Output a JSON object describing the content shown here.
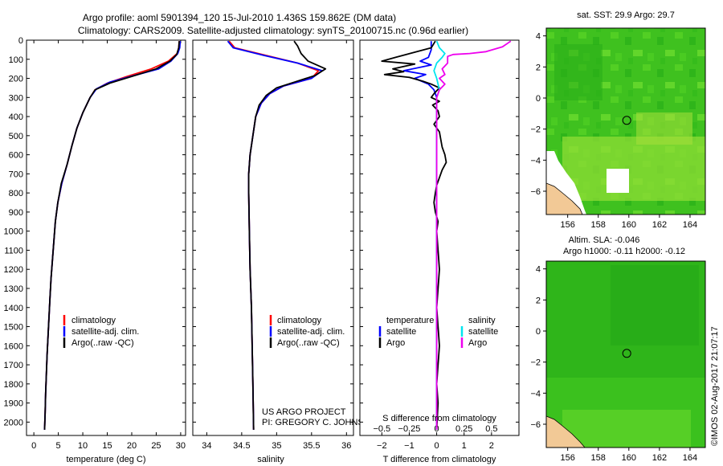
{
  "header": {
    "line1": "Argo profile: aoml 5901394_120 15-Jul-2010 1.436S 159.862E (DM data)",
    "line2": "Climatology: CARS2009. Satellite-adjusted climatology: synTS_20100715.nc (0.96d earlier)"
  },
  "colors": {
    "climatology": "#ff0000",
    "satellite": "#0000ff",
    "argo": "#000000",
    "sal_satellite": "#00e5ee",
    "sal_argo": "#ee00ee"
  },
  "credits": {
    "project": "US ARGO PROJECT",
    "pi": "PI: GREGORY C. JOHNSON",
    "stamp": "©IMOS 02-Aug-2017 21:07:17"
  },
  "chart_data": [
    {
      "id": "temperature",
      "type": "line",
      "xlabel": "temperature (deg C)",
      "ylabel": "depth",
      "xlim": [
        -1.5,
        31
      ],
      "ylim": [
        2070,
        0
      ],
      "xticks": [
        0,
        5,
        10,
        15,
        20,
        25,
        30
      ],
      "yticks": [
        0,
        100,
        200,
        300,
        400,
        500,
        600,
        700,
        800,
        900,
        1000,
        1100,
        1200,
        1300,
        1400,
        1500,
        1600,
        1700,
        1800,
        1900,
        2000
      ],
      "legend": [
        "climatology",
        "satellite-adj. clim.",
        "Argo(..raw -QC)"
      ],
      "series": [
        {
          "name": "climatology",
          "color_key": "climatology",
          "points": [
            [
              29.7,
              5
            ],
            [
              29.6,
              40
            ],
            [
              29.3,
              70
            ],
            [
              27.5,
              110
            ],
            [
              24,
              150
            ],
            [
              19,
              190
            ],
            [
              15,
              225
            ],
            [
              12.5,
              260
            ],
            [
              11.5,
              300
            ],
            [
              10,
              380
            ],
            [
              8.8,
              460
            ],
            [
              7.8,
              550
            ],
            [
              6.8,
              650
            ],
            [
              5.7,
              750
            ],
            [
              4.9,
              850
            ],
            [
              4.4,
              950
            ],
            [
              4.1,
              1050
            ],
            [
              3.8,
              1150
            ],
            [
              3.5,
              1250
            ],
            [
              3.3,
              1350
            ],
            [
              3.1,
              1450
            ],
            [
              2.9,
              1550
            ],
            [
              2.7,
              1650
            ],
            [
              2.55,
              1750
            ],
            [
              2.4,
              1850
            ],
            [
              2.3,
              1950
            ],
            [
              2.2,
              2040
            ]
          ]
        },
        {
          "name": "satellite-adj. clim.",
          "color_key": "satellite",
          "points": [
            [
              29.9,
              5
            ],
            [
              29.8,
              40
            ],
            [
              29.4,
              70
            ],
            [
              28,
              110
            ],
            [
              25.5,
              150
            ],
            [
              20.5,
              185
            ],
            [
              15.5,
              220
            ],
            [
              12.8,
              255
            ],
            [
              11.5,
              300
            ],
            [
              10,
              380
            ],
            [
              8.8,
              460
            ],
            [
              7.8,
              550
            ],
            [
              6.8,
              650
            ],
            [
              5.7,
              750
            ],
            [
              4.9,
              850
            ],
            [
              4.4,
              950
            ],
            [
              4.1,
              1050
            ],
            [
              3.8,
              1150
            ],
            [
              3.5,
              1250
            ],
            [
              3.3,
              1350
            ],
            [
              3.1,
              1450
            ],
            [
              2.9,
              1550
            ],
            [
              2.7,
              1650
            ],
            [
              2.55,
              1750
            ],
            [
              2.4,
              1850
            ],
            [
              2.3,
              1950
            ],
            [
              2.2,
              2040
            ]
          ]
        },
        {
          "name": "Argo(..raw -QC)",
          "color_key": "argo",
          "points": [
            [
              29.7,
              5
            ],
            [
              29.6,
              40
            ],
            [
              29.2,
              75
            ],
            [
              27.8,
              110
            ],
            [
              25,
              150
            ],
            [
              20,
              190
            ],
            [
              15.5,
              225
            ],
            [
              12.5,
              260
            ],
            [
              11.5,
              300
            ],
            [
              10,
              380
            ],
            [
              8.8,
              460
            ],
            [
              7.8,
              550
            ],
            [
              6.8,
              650
            ],
            [
              5.6,
              750
            ],
            [
              4.9,
              850
            ],
            [
              4.4,
              950
            ],
            [
              4.1,
              1050
            ],
            [
              3.8,
              1150
            ],
            [
              3.5,
              1250
            ],
            [
              3.3,
              1350
            ],
            [
              3.1,
              1450
            ],
            [
              2.9,
              1550
            ],
            [
              2.7,
              1650
            ],
            [
              2.55,
              1750
            ],
            [
              2.4,
              1850
            ],
            [
              2.3,
              1950
            ],
            [
              2.2,
              2040
            ]
          ]
        }
      ]
    },
    {
      "id": "salinity",
      "type": "line",
      "xlabel": "salinity",
      "xlim": [
        33.8,
        36.1
      ],
      "ylim": [
        2070,
        0
      ],
      "xticks": [
        34,
        34.5,
        35,
        35.5,
        36
      ],
      "xticklabels": [
        "34",
        "34.5",
        "35",
        "35.5",
        "36"
      ],
      "legend": [
        "climatology",
        "satellite-adj. clim.",
        "Argo(..raw -QC)"
      ],
      "series": [
        {
          "name": "climatology",
          "color_key": "climatology",
          "points": [
            [
              34.32,
              5
            ],
            [
              34.4,
              40
            ],
            [
              34.85,
              80
            ],
            [
              35.3,
              120
            ],
            [
              35.6,
              160
            ],
            [
              35.5,
              200
            ],
            [
              35.1,
              240
            ],
            [
              34.9,
              280
            ],
            [
              34.78,
              330
            ],
            [
              34.7,
              400
            ],
            [
              34.66,
              500
            ],
            [
              34.62,
              600
            ],
            [
              34.6,
              700
            ],
            [
              34.6,
              800
            ],
            [
              34.61,
              1000
            ],
            [
              34.62,
              1200
            ],
            [
              34.64,
              1400
            ],
            [
              34.65,
              1600
            ],
            [
              34.66,
              1800
            ],
            [
              34.67,
              2040
            ]
          ]
        },
        {
          "name": "satellite-adj. clim.",
          "color_key": "satellite",
          "points": [
            [
              34.3,
              5
            ],
            [
              34.38,
              40
            ],
            [
              34.82,
              80
            ],
            [
              35.3,
              120
            ],
            [
              35.65,
              160
            ],
            [
              35.5,
              200
            ],
            [
              35.1,
              240
            ],
            [
              34.9,
              280
            ],
            [
              34.78,
              330
            ],
            [
              34.7,
              400
            ],
            [
              34.66,
              500
            ],
            [
              34.62,
              600
            ],
            [
              34.6,
              700
            ],
            [
              34.6,
              800
            ],
            [
              34.61,
              1000
            ],
            [
              34.62,
              1200
            ],
            [
              34.64,
              1400
            ],
            [
              34.65,
              1600
            ],
            [
              34.66,
              1800
            ],
            [
              34.67,
              2040
            ]
          ]
        },
        {
          "name": "Argo(..raw -QC)",
          "color_key": "argo",
          "points": [
            [
              35.25,
              5
            ],
            [
              35.3,
              30
            ],
            [
              35.35,
              70
            ],
            [
              35.45,
              110
            ],
            [
              35.7,
              150
            ],
            [
              35.55,
              185
            ],
            [
              35.25,
              220
            ],
            [
              35.0,
              250
            ],
            [
              34.85,
              290
            ],
            [
              34.75,
              340
            ],
            [
              34.7,
              400
            ],
            [
              34.66,
              500
            ],
            [
              34.62,
              600
            ],
            [
              34.6,
              700
            ],
            [
              34.6,
              800
            ],
            [
              34.61,
              1000
            ],
            [
              34.62,
              1200
            ],
            [
              34.64,
              1400
            ],
            [
              34.65,
              1600
            ],
            [
              34.66,
              1800
            ],
            [
              34.67,
              2040
            ]
          ]
        }
      ]
    },
    {
      "id": "differences",
      "type": "line",
      "xlabel": "T difference from climatology",
      "xlabel_top": "S difference from climatology",
      "xlim": [
        -2.8,
        3
      ],
      "ylim": [
        2070,
        0
      ],
      "xticks": [
        -2,
        -1,
        0,
        1,
        2
      ],
      "xticks_salinity": [
        -0.5,
        -0.25,
        0,
        0.25,
        0.5
      ],
      "xticklabels_salinity": [
        "-0.5",
        "-0.25",
        "0",
        "0.25",
        "0.5"
      ],
      "legend_headers": [
        "temperature",
        "salinity"
      ],
      "legend_left": [
        "satellite",
        "Argo"
      ],
      "legend_right": [
        "satellite",
        "Argo"
      ],
      "series": [
        {
          "name": "temperature satellite",
          "color_key": "satellite",
          "points": [
            [
              -0.2,
              5
            ],
            [
              -0.2,
              50
            ],
            [
              -0.3,
              90
            ],
            [
              -0.6,
              110
            ],
            [
              -0.2,
              130
            ],
            [
              -1.2,
              160
            ],
            [
              -0.4,
              180
            ],
            [
              -0.8,
              200
            ],
            [
              -0.3,
              230
            ],
            [
              -0.1,
              260
            ],
            [
              0.0,
              300
            ],
            [
              0.0,
              500
            ],
            [
              0.0,
              1000
            ],
            [
              0.0,
              2040
            ]
          ]
        },
        {
          "name": "temperature Argo",
          "color_key": "argo",
          "points": [
            [
              -0.05,
              5
            ],
            [
              -0.2,
              40
            ],
            [
              -1.5,
              90
            ],
            [
              -2.0,
              110
            ],
            [
              -0.8,
              125
            ],
            [
              -1.6,
              150
            ],
            [
              -1.2,
              165
            ],
            [
              -1.9,
              180
            ],
            [
              -1.0,
              195
            ],
            [
              -0.5,
              215
            ],
            [
              -0.2,
              230
            ],
            [
              0.1,
              250
            ],
            [
              -0.1,
              280
            ],
            [
              -0.2,
              300
            ],
            [
              0.1,
              320
            ],
            [
              -0.15,
              340
            ],
            [
              0.05,
              370
            ],
            [
              0.1,
              400
            ],
            [
              -0.1,
              440
            ],
            [
              0.1,
              480
            ],
            [
              0.15,
              520
            ],
            [
              0.2,
              560
            ],
            [
              0.3,
              600
            ],
            [
              0.35,
              640
            ],
            [
              0.2,
              680
            ],
            [
              0.1,
              720
            ],
            [
              0.0,
              760
            ],
            [
              -0.05,
              800
            ],
            [
              -0.1,
              850
            ],
            [
              -0.05,
              900
            ],
            [
              0.05,
              950
            ],
            [
              0.0,
              1000
            ],
            [
              0.05,
              1100
            ],
            [
              0.1,
              1200
            ],
            [
              0.05,
              1300
            ],
            [
              0.0,
              1400
            ],
            [
              0.05,
              1500
            ],
            [
              0.1,
              1600
            ],
            [
              0.05,
              1700
            ],
            [
              0.0,
              1800
            ],
            [
              0.05,
              1900
            ],
            [
              0.0,
              2040
            ]
          ]
        },
        {
          "name": "salinity satellite",
          "color_key": "sal_satellite",
          "points": [
            [
              0.0,
              5
            ],
            [
              0.1,
              40
            ],
            [
              0.3,
              70
            ],
            [
              0.2,
              90
            ],
            [
              0.0,
              120
            ],
            [
              -0.1,
              160
            ],
            [
              0.0,
              200
            ],
            [
              0.1,
              260
            ],
            [
              0.0,
              300
            ],
            [
              0.0,
              600
            ],
            [
              0.0,
              1000
            ],
            [
              0.0,
              2040
            ]
          ]
        },
        {
          "name": "salinity Argo",
          "color_key": "sal_argo",
          "points": [
            [
              2.7,
              5
            ],
            [
              2.4,
              35
            ],
            [
              1.8,
              60
            ],
            [
              1.2,
              70
            ],
            [
              0.6,
              75
            ],
            [
              0.4,
              85
            ],
            [
              0.4,
              120
            ],
            [
              0.2,
              150
            ],
            [
              0.3,
              180
            ],
            [
              0.1,
              200
            ],
            [
              0.3,
              230
            ],
            [
              0.1,
              260
            ],
            [
              0.0,
              300
            ],
            [
              0.0,
              2040
            ]
          ]
        }
      ]
    },
    {
      "id": "sst_map",
      "type": "heatmap",
      "title": "sat. SST: 29.9 Argo: 29.7",
      "xlim": [
        154.6,
        165.0
      ],
      "ylim": [
        -7.5,
        4.5
      ],
      "xticks": [
        156,
        158,
        160,
        162,
        164
      ],
      "yticks": [
        4,
        2,
        0,
        -2,
        -4,
        -6
      ],
      "marker": {
        "lon": 159.862,
        "lat": -1.436
      }
    },
    {
      "id": "sla_map",
      "type": "heatmap",
      "title_line1": "Altim. SLA: -0.046",
      "title_line2": "Argo h1000: -0.11 h2000: -0.12",
      "xlim": [
        154.6,
        165.0
      ],
      "ylim": [
        -7.5,
        4.5
      ],
      "xticks": [
        156,
        158,
        160,
        162,
        164
      ],
      "yticks": [
        4,
        2,
        0,
        -2,
        -4,
        -6
      ],
      "marker": {
        "lon": 159.862,
        "lat": -1.436
      }
    }
  ]
}
